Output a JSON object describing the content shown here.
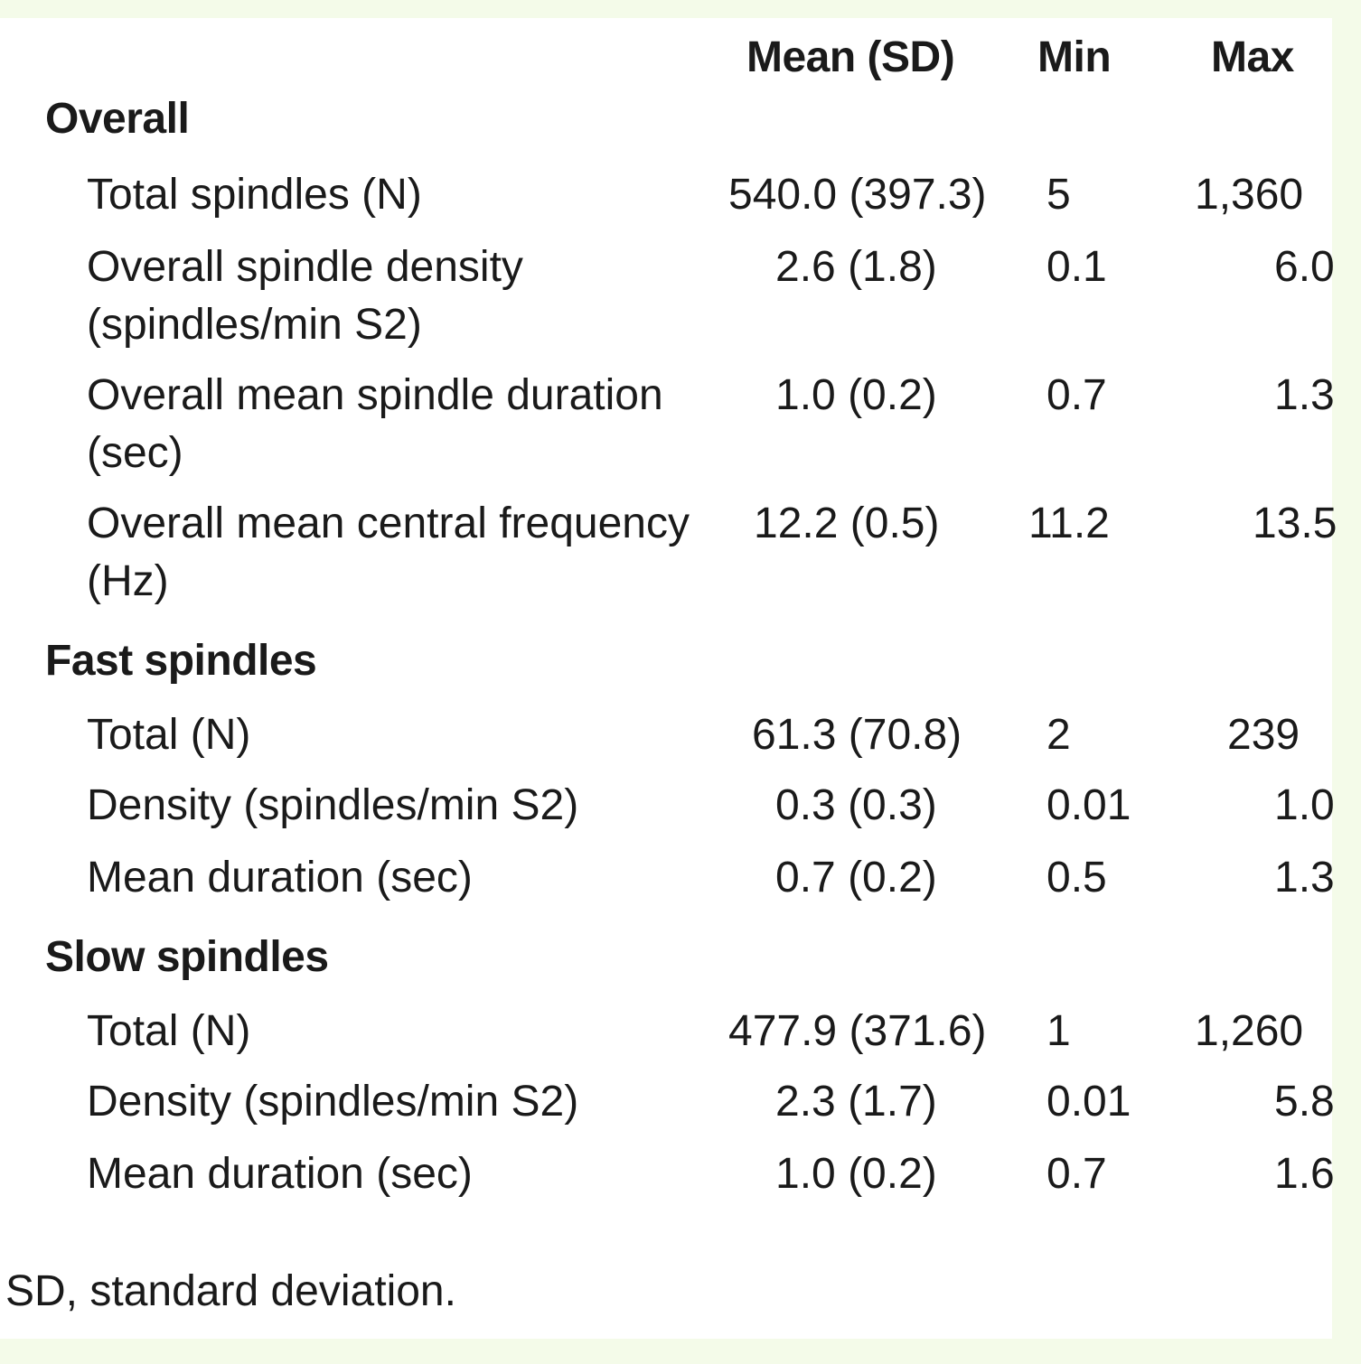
{
  "table": {
    "columns": [
      "Mean (SD)",
      "Min",
      "Max"
    ],
    "sections": [
      {
        "title": "Overall",
        "rows": [
          {
            "label": "Total spindles (N)",
            "mean": "540.0 (397.3)",
            "min": "5",
            "max": "1,360"
          },
          {
            "label": "Overall spindle density (spindles/min S2)",
            "mean": "2.6 (1.8)",
            "min": "0.1",
            "max": "6.0"
          },
          {
            "label": "Overall mean spindle duration (sec)",
            "mean": "1.0 (0.2)",
            "min": "0.7",
            "max": "1.3"
          },
          {
            "label": "Overall mean central frequency (Hz)",
            "mean": "12.2 (0.5)",
            "min": "11.2",
            "max": "13.5"
          }
        ]
      },
      {
        "title": "Fast spindles",
        "rows": [
          {
            "label": "Total (N)",
            "mean": "61.3 (70.8)",
            "min": "2",
            "max": "239"
          },
          {
            "label": "Density (spindles/min S2)",
            "mean": "0.3 (0.3)",
            "min": "0.01",
            "max": "1.0"
          },
          {
            "label": "Mean duration (sec)",
            "mean": "0.7 (0.2)",
            "min": "0.5",
            "max": "1.3"
          }
        ]
      },
      {
        "title": "Slow spindles",
        "rows": [
          {
            "label": "Total (N)",
            "mean": "477.9 (371.6)",
            "min": "1",
            "max": "1,260"
          },
          {
            "label": "Density (spindles/min S2)",
            "mean": "2.3 (1.7)",
            "min": "0.01",
            "max": "5.8"
          },
          {
            "label": "Mean duration (sec)",
            "mean": "1.0 (0.2)",
            "min": "0.7",
            "max": "1.6"
          }
        ]
      }
    ]
  },
  "footnote": "SD, standard deviation."
}
